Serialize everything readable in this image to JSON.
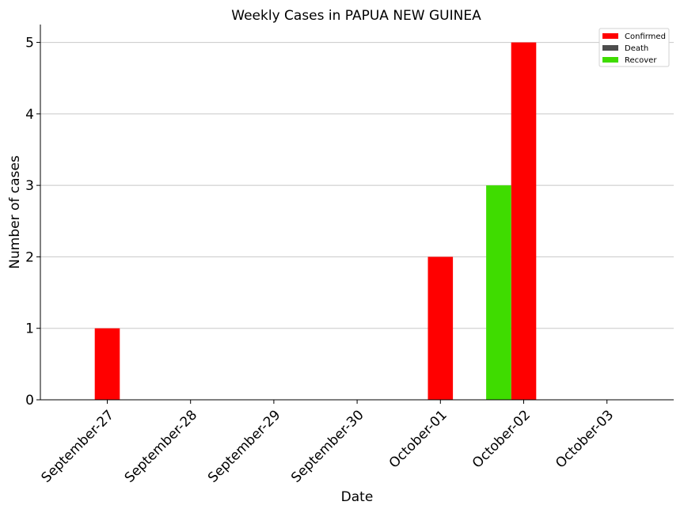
{
  "chart_data": {
    "type": "bar",
    "title": "Weekly Cases in PAPUA NEW GUINEA",
    "xlabel": "Date",
    "ylabel": "Number of cases",
    "categories": [
      "September-27",
      "September-28",
      "September-29",
      "September-30",
      "October-01",
      "October-02",
      "October-03"
    ],
    "series": [
      {
        "name": "Confirmed",
        "color": "#ff0000",
        "values": [
          1,
          0,
          0,
          0,
          2,
          5,
          0
        ]
      },
      {
        "name": "Death",
        "color": "#4d4d4d",
        "values": [
          0,
          0,
          0,
          0,
          0,
          0,
          0
        ]
      },
      {
        "name": "Recover",
        "color": "#3fdc00",
        "values": [
          0,
          0,
          0,
          0,
          0,
          3,
          0
        ]
      }
    ],
    "ylim": [
      0,
      5.25
    ],
    "yticks": [
      0,
      1,
      2,
      3,
      4,
      5
    ],
    "grid": "y",
    "legend_position": "top-right"
  }
}
